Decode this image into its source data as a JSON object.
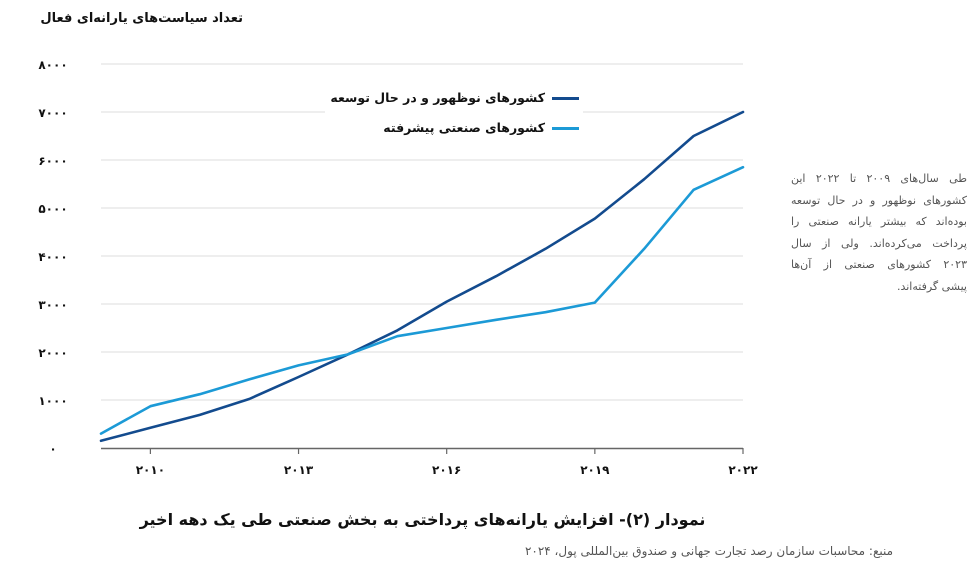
{
  "y_axis_title": "تعداد سیاست‌های یارانه‌ای فعال",
  "legend": {
    "items": [
      {
        "label": "کشورهای نوظهور و در حال توسعه",
        "color": "#134b8e"
      },
      {
        "label": "کشورهای صنعتی پیشرفته",
        "color": "#1c9ad6"
      }
    ]
  },
  "sidenote": {
    "lines": [
      "طی سال‌های ۲۰۰۹ تا ۲۰۲۲ این",
      "کشورهای نوظهور و در حال توسعه",
      "بوده‌اند که بیشتر یارانه صنعتی را",
      "پرداخت می‌کرده‌اند. ولی از سال",
      "۲۰۲۳ کشورهای صنعتی از آن‌ها",
      "پیشی گرفته‌اند."
    ]
  },
  "caption": "نمودار (۲)- افزایش یارانه‌های پرداختی به بخش صنعتی طی یک دهه اخیر",
  "source": "منبع: محاسبات سازمان رصد تجارت جهانی و صندوق بین‌المللی پول، ۲۰۲۴",
  "colors": {
    "emerging": "#134b8e",
    "advanced": "#1c9ad6",
    "grid": "#dcdcdc",
    "axis": "#666666",
    "text_muted": "#555555"
  },
  "chart_data": {
    "type": "line",
    "title": "نمودار (۲)- افزایش یارانه‌های پرداختی به بخش صنعتی طی یک دهه اخیر",
    "xlabel": "",
    "ylabel": "تعداد سیاست‌های یارانه‌ای فعال",
    "x": [
      2009,
      2010,
      2011,
      2012,
      2013,
      2014,
      2015,
      2016,
      2017,
      2018,
      2019,
      2020,
      2021,
      2022
    ],
    "series": [
      {
        "name": "کشورهای نوظهور و در حال توسعه",
        "color": "#134b8e",
        "values": [
          150,
          420,
          690,
          1020,
          1480,
          1950,
          2450,
          3050,
          3580,
          4150,
          4780,
          5600,
          6500,
          7000
        ]
      },
      {
        "name": "کشورهای صنعتی پیشرفته",
        "color": "#1c9ad6",
        "values": [
          300,
          870,
          1120,
          1430,
          1720,
          1950,
          2330,
          2500,
          2670,
          2830,
          3030,
          4150,
          5380,
          5850
        ]
      }
    ],
    "xlim": [
      2009,
      2022
    ],
    "ylim": [
      0,
      8000
    ],
    "y_ticks": [
      0,
      1000,
      2000,
      3000,
      4000,
      5000,
      6000,
      7000,
      8000
    ],
    "y_tick_labels": [
      "۰",
      "۱۰۰۰",
      "۲۰۰۰",
      "۳۰۰۰",
      "۴۰۰۰",
      "۵۰۰۰",
      "۶۰۰۰",
      "۷۰۰۰",
      "۸۰۰۰"
    ],
    "x_ticks": [
      2010,
      2013,
      2016,
      2019,
      2022
    ],
    "x_tick_labels": [
      "۲۰۱۰",
      "۲۰۱۳",
      "۲۰۱۶",
      "۲۰۱۹",
      "۲۰۲۲"
    ],
    "grid": true,
    "legend_position": "top-center",
    "annotation": "طی سال‌های ۲۰۰۹ تا ۲۰۲۲ این کشورهای نوظهور و در حال توسعه بوده‌اند که بیشتر یارانه صنعتی را پرداخت می‌کرده‌اند. ولی از سال ۲۰۲۳ کشورهای صنعتی از آن‌ها پیشی گرفته‌اند."
  }
}
